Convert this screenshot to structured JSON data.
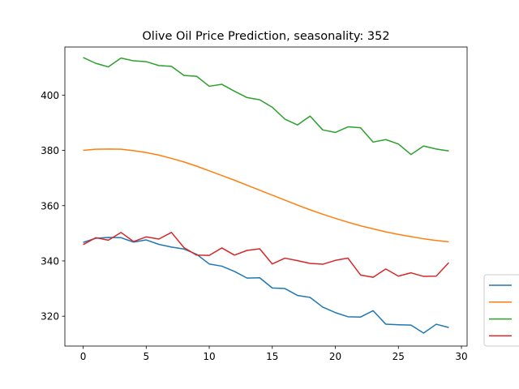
{
  "chart_data": {
    "type": "line",
    "title": "Olive Oil Price Prediction, seasonality: 352",
    "xlabel": "",
    "ylabel": "",
    "xlim": [
      -1.45,
      30.45
    ],
    "ylim": [
      309.2,
      417.4
    ],
    "xticks": [
      0,
      5,
      10,
      15,
      20,
      25,
      30
    ],
    "yticks": [
      320,
      340,
      360,
      380,
      400
    ],
    "grid": false,
    "legend": {
      "placement": "outside-right-bottom",
      "show_names": false
    },
    "x": [
      0,
      1,
      2,
      3,
      4,
      5,
      6,
      7,
      8,
      9,
      10,
      11,
      12,
      13,
      14,
      15,
      16,
      17,
      18,
      19,
      20,
      21,
      22,
      23,
      24,
      25,
      26,
      27,
      28,
      29
    ],
    "series": [
      {
        "color": "#1f77b4",
        "values": [
          346.7,
          348.2,
          348.5,
          348.4,
          346.8,
          347.6,
          346.0,
          345.0,
          344.3,
          342.4,
          338.9,
          338.1,
          336.2,
          333.8,
          333.9,
          330.2,
          330.0,
          327.5,
          326.8,
          323.3,
          321.3,
          319.8,
          319.7,
          322.0,
          317.1,
          316.9,
          316.8,
          313.9,
          317.1,
          315.9
        ]
      },
      {
        "color": "#ff7f0e",
        "values": [
          380.0,
          380.4,
          380.5,
          380.4,
          379.9,
          379.2,
          378.3,
          377.1,
          375.8,
          374.3,
          372.6,
          370.9,
          369.2,
          367.4,
          365.6,
          363.8,
          362.0,
          360.2,
          358.5,
          356.9,
          355.4,
          354.0,
          352.7,
          351.6,
          350.5,
          349.6,
          348.8,
          348.0,
          347.4,
          346.9
        ]
      },
      {
        "color": "#2ca02c",
        "values": [
          413.6,
          411.5,
          410.2,
          413.4,
          412.4,
          412.1,
          410.7,
          410.4,
          407.1,
          406.8,
          403.2,
          403.9,
          401.4,
          399.1,
          398.3,
          395.6,
          391.3,
          389.2,
          392.4,
          387.4,
          386.5,
          388.5,
          388.2,
          383.0,
          383.9,
          382.3,
          378.5,
          381.6,
          380.5,
          379.8
        ]
      },
      {
        "color": "#d62728",
        "values": [
          345.9,
          348.4,
          347.5,
          350.3,
          347.0,
          348.7,
          347.9,
          350.3,
          344.8,
          342.1,
          342.0,
          344.7,
          342.1,
          343.8,
          344.4,
          338.9,
          341.0,
          340.1,
          339.1,
          338.8,
          340.2,
          341.0,
          334.9,
          334.1,
          337.1,
          334.5,
          335.7,
          334.4,
          334.5,
          339.4
        ]
      }
    ]
  }
}
